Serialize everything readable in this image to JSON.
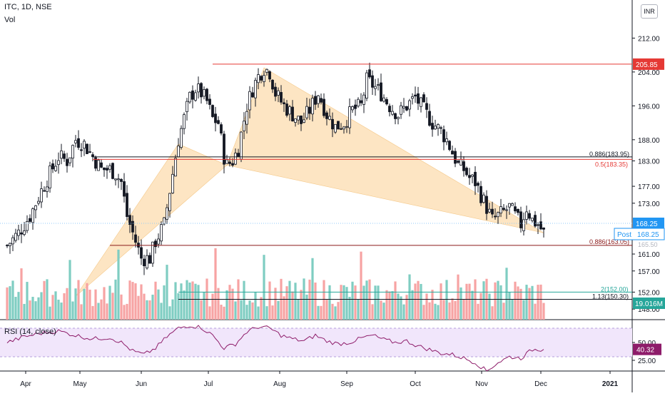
{
  "header": {
    "symbol_line": "ITC, 1D, NSE",
    "volume_label": "Vol",
    "rsi_label": "RSI (14, close)",
    "currency_button": "INR"
  },
  "colors": {
    "up": "#131722",
    "down": "#131722",
    "vol_up": "#7fcdc2",
    "vol_down": "#f7a3a3",
    "pattern_fill": "#fde0b8",
    "red_line": "#e53935",
    "dark_red": "#8b1a1a",
    "rsi_line": "#8e1c6a",
    "rsi_band": "#f1e6fb",
    "price_badge": "#2196f3"
  },
  "chart_data": [
    {
      "type": "candlestick",
      "title": "ITC, 1D, NSE",
      "x_ticks": [
        "Apr",
        "May",
        "Jun",
        "Jul",
        "Aug",
        "Sep",
        "Oct",
        "Nov",
        "Dec",
        "2021"
      ],
      "y_ticks": [
        212.0,
        204.0,
        196.0,
        188.0,
        183.0,
        177.0,
        173.0,
        168.25,
        161.0,
        157.0,
        152.0,
        148.0
      ],
      "y_range": [
        145.5,
        221
      ],
      "close_path": [
        [
          0,
          163
        ],
        [
          4,
          166
        ],
        [
          8,
          170
        ],
        [
          12,
          176
        ],
        [
          15,
          180
        ],
        [
          18,
          184
        ],
        [
          21,
          183
        ],
        [
          24,
          188
        ],
        [
          27,
          187
        ],
        [
          30,
          184
        ],
        [
          33,
          181
        ],
        [
          36,
          181
        ],
        [
          38,
          180
        ],
        [
          40,
          178
        ],
        [
          42,
          170
        ],
        [
          44,
          166
        ],
        [
          47,
          160
        ],
        [
          50,
          160
        ],
        [
          52,
          164
        ],
        [
          55,
          168
        ],
        [
          57,
          176
        ],
        [
          60,
          188
        ],
        [
          62,
          193
        ],
        [
          64,
          198
        ],
        [
          66,
          200
        ],
        [
          68,
          199
        ],
        [
          70,
          197
        ],
        [
          72,
          193
        ],
        [
          74,
          192
        ],
        [
          76,
          184
        ],
        [
          77,
          182
        ],
        [
          79,
          183
        ],
        [
          81,
          186
        ],
        [
          84,
          196
        ],
        [
          86,
          200
        ],
        [
          88,
          203
        ],
        [
          90,
          205
        ],
        [
          92,
          204
        ],
        [
          94,
          199
        ],
        [
          97,
          196
        ],
        [
          100,
          194
        ],
        [
          103,
          192
        ],
        [
          106,
          195
        ],
        [
          109,
          199
        ],
        [
          112,
          194
        ],
        [
          115,
          191
        ],
        [
          118,
          192
        ],
        [
          121,
          195
        ],
        [
          124,
          196
        ],
        [
          126,
          202
        ],
        [
          128,
          201
        ],
        [
          131,
          199
        ],
        [
          134,
          196
        ],
        [
          137,
          194
        ],
        [
          140,
          196
        ],
        [
          143,
          198
        ],
        [
          146,
          195
        ],
        [
          149,
          192
        ],
        [
          152,
          190
        ],
        [
          154,
          188
        ],
        [
          156,
          185
        ],
        [
          158,
          182
        ],
        [
          160,
          181
        ],
        [
          162,
          179
        ],
        [
          164,
          178
        ],
        [
          166,
          175
        ],
        [
          168,
          172
        ],
        [
          170,
          169
        ],
        [
          172,
          170
        ],
        [
          174,
          171
        ],
        [
          176,
          172
        ],
        [
          178,
          170
        ],
        [
          180,
          168
        ],
        [
          182,
          172
        ],
        [
          184,
          169
        ],
        [
          186,
          168
        ],
        [
          188,
          166
        ]
      ],
      "pattern_points": [
        [
          24,
          151
        ],
        [
          60,
          187
        ],
        [
          77,
          182
        ],
        [
          90,
          205
        ],
        [
          188,
          166
        ]
      ],
      "horizontal_levels": [
        {
          "label": "205.85",
          "value": 205.85
        },
        {
          "label": "0.886(183.95)",
          "value": 183.95
        },
        {
          "label": "0.5(183.35)",
          "value": 183.35
        },
        {
          "label": "0.886(163.05)",
          "value": 163.05
        },
        {
          "label": "2(152.00)",
          "value": 152.0
        },
        {
          "label": "1.13(150.30)",
          "value": 150.3
        }
      ],
      "last_price": {
        "label": "168.25",
        "post_label": "Post",
        "post_price": "168.25",
        "value": 168.25
      },
      "hidden_axis_value": "165.50"
    },
    {
      "type": "bar",
      "title": "Vol",
      "last_volume_label": "19.016M"
    },
    {
      "type": "line",
      "title": "RSI (14, close)",
      "y_ticks": [
        50.0,
        25.0
      ],
      "band": [
        30,
        70
      ],
      "last_value_label": "40.32",
      "x_ticks": [
        "Apr",
        "May",
        "Jun",
        "Jul",
        "Aug",
        "Sep",
        "Oct",
        "Nov",
        "Dec",
        "2021"
      ],
      "values": [
        [
          0,
          50
        ],
        [
          6,
          58
        ],
        [
          12,
          63
        ],
        [
          18,
          66
        ],
        [
          24,
          60
        ],
        [
          30,
          55
        ],
        [
          36,
          57
        ],
        [
          40,
          50
        ],
        [
          44,
          38
        ],
        [
          48,
          33
        ],
        [
          52,
          42
        ],
        [
          56,
          58
        ],
        [
          60,
          70
        ],
        [
          64,
          74
        ],
        [
          68,
          71
        ],
        [
          72,
          60
        ],
        [
          76,
          42
        ],
        [
          80,
          48
        ],
        [
          84,
          65
        ],
        [
          88,
          72
        ],
        [
          92,
          70
        ],
        [
          96,
          60
        ],
        [
          100,
          55
        ],
        [
          104,
          52
        ],
        [
          108,
          60
        ],
        [
          112,
          52
        ],
        [
          116,
          48
        ],
        [
          120,
          50
        ],
        [
          124,
          56
        ],
        [
          128,
          60
        ],
        [
          132,
          54
        ],
        [
          136,
          50
        ],
        [
          140,
          52
        ],
        [
          144,
          45
        ],
        [
          148,
          40
        ],
        [
          152,
          35
        ],
        [
          156,
          33
        ],
        [
          160,
          28
        ],
        [
          164,
          22
        ],
        [
          168,
          10
        ],
        [
          172,
          22
        ],
        [
          176,
          30
        ],
        [
          180,
          28
        ],
        [
          184,
          40
        ],
        [
          188,
          40.32
        ]
      ]
    }
  ]
}
